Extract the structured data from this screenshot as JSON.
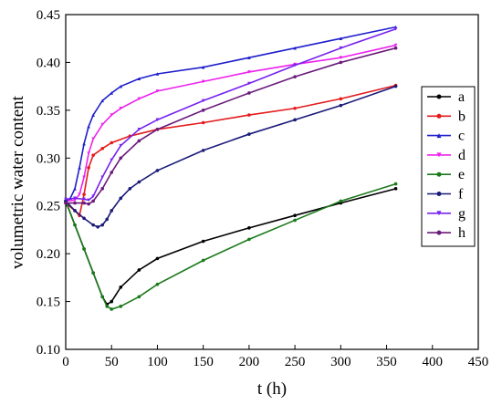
{
  "chart_data": {
    "type": "line",
    "title": "",
    "xlabel": "t (h)",
    "ylabel": "volumetric water content",
    "xlim": [
      0,
      450
    ],
    "ylim": [
      0.1,
      0.45
    ],
    "xticks": [
      0,
      50,
      100,
      150,
      200,
      250,
      300,
      350,
      400,
      450
    ],
    "yticks": [
      0.1,
      0.15,
      0.2,
      0.25,
      0.3,
      0.35,
      0.4,
      0.45
    ],
    "x_tick_labels": [
      "0",
      "50",
      "100",
      "150",
      "200",
      "250",
      "300",
      "350",
      "400",
      "450"
    ],
    "y_tick_labels": [
      "0.10",
      "0.15",
      "0.20",
      "0.25",
      "0.30",
      "0.35",
      "0.40",
      "0.45"
    ],
    "grid": false,
    "legend_position": "right",
    "series": [
      {
        "name": "a",
        "color": "#000000",
        "marker": "circle",
        "x": [
          0,
          10,
          20,
          30,
          40,
          45,
          50,
          60,
          80,
          100,
          150,
          200,
          250,
          300,
          360
        ],
        "y": [
          0.255,
          0.23,
          0.205,
          0.18,
          0.155,
          0.147,
          0.15,
          0.165,
          0.183,
          0.195,
          0.213,
          0.227,
          0.24,
          0.253,
          0.268
        ]
      },
      {
        "name": "b",
        "color": "#e41a1c",
        "marker": "circle",
        "x": [
          0,
          10,
          15,
          20,
          25,
          30,
          40,
          50,
          70,
          100,
          150,
          200,
          250,
          300,
          360
        ],
        "y": [
          0.253,
          0.245,
          0.24,
          0.262,
          0.29,
          0.303,
          0.31,
          0.316,
          0.323,
          0.33,
          0.337,
          0.345,
          0.352,
          0.362,
          0.376
        ]
      },
      {
        "name": "c",
        "color": "#1f1fcc",
        "marker": "triangle",
        "x": [
          0,
          5,
          10,
          15,
          20,
          25,
          30,
          40,
          50,
          60,
          80,
          100,
          150,
          200,
          250,
          300,
          360
        ],
        "y": [
          0.255,
          0.258,
          0.268,
          0.29,
          0.315,
          0.333,
          0.345,
          0.36,
          0.368,
          0.375,
          0.383,
          0.388,
          0.395,
          0.405,
          0.415,
          0.425,
          0.437
        ]
      },
      {
        "name": "d",
        "color": "#ee22ee",
        "marker": "triangle-down",
        "x": [
          0,
          10,
          15,
          20,
          25,
          30,
          40,
          50,
          60,
          80,
          100,
          150,
          200,
          250,
          300,
          360
        ],
        "y": [
          0.255,
          0.256,
          0.262,
          0.28,
          0.305,
          0.32,
          0.335,
          0.345,
          0.352,
          0.362,
          0.37,
          0.38,
          0.39,
          0.398,
          0.405,
          0.418
        ]
      },
      {
        "name": "e",
        "color": "#1a7a1a",
        "marker": "circle",
        "x": [
          0,
          10,
          20,
          30,
          40,
          45,
          50,
          60,
          80,
          100,
          150,
          200,
          250,
          300,
          360
        ],
        "y": [
          0.255,
          0.23,
          0.205,
          0.18,
          0.155,
          0.145,
          0.142,
          0.145,
          0.155,
          0.168,
          0.193,
          0.215,
          0.235,
          0.255,
          0.273
        ]
      },
      {
        "name": "f",
        "color": "#1a1a7a",
        "marker": "circle",
        "x": [
          0,
          10,
          20,
          30,
          35,
          40,
          45,
          50,
          60,
          70,
          80,
          100,
          150,
          200,
          250,
          300,
          360
        ],
        "y": [
          0.255,
          0.245,
          0.237,
          0.23,
          0.228,
          0.23,
          0.236,
          0.245,
          0.258,
          0.268,
          0.275,
          0.287,
          0.308,
          0.325,
          0.34,
          0.355,
          0.375
        ]
      },
      {
        "name": "g",
        "color": "#7722ee",
        "marker": "triangle-down",
        "x": [
          0,
          10,
          20,
          25,
          30,
          40,
          50,
          60,
          80,
          100,
          150,
          200,
          250,
          300,
          360
        ],
        "y": [
          0.257,
          0.258,
          0.257,
          0.256,
          0.26,
          0.28,
          0.298,
          0.313,
          0.33,
          0.34,
          0.36,
          0.378,
          0.397,
          0.415,
          0.435
        ]
      },
      {
        "name": "h",
        "color": "#6a1a7a",
        "marker": "circle",
        "x": [
          0,
          10,
          20,
          25,
          30,
          40,
          50,
          60,
          80,
          100,
          150,
          200,
          250,
          300,
          360
        ],
        "y": [
          0.253,
          0.253,
          0.253,
          0.252,
          0.255,
          0.268,
          0.285,
          0.3,
          0.318,
          0.33,
          0.35,
          0.368,
          0.385,
          0.4,
          0.415
        ]
      }
    ]
  }
}
